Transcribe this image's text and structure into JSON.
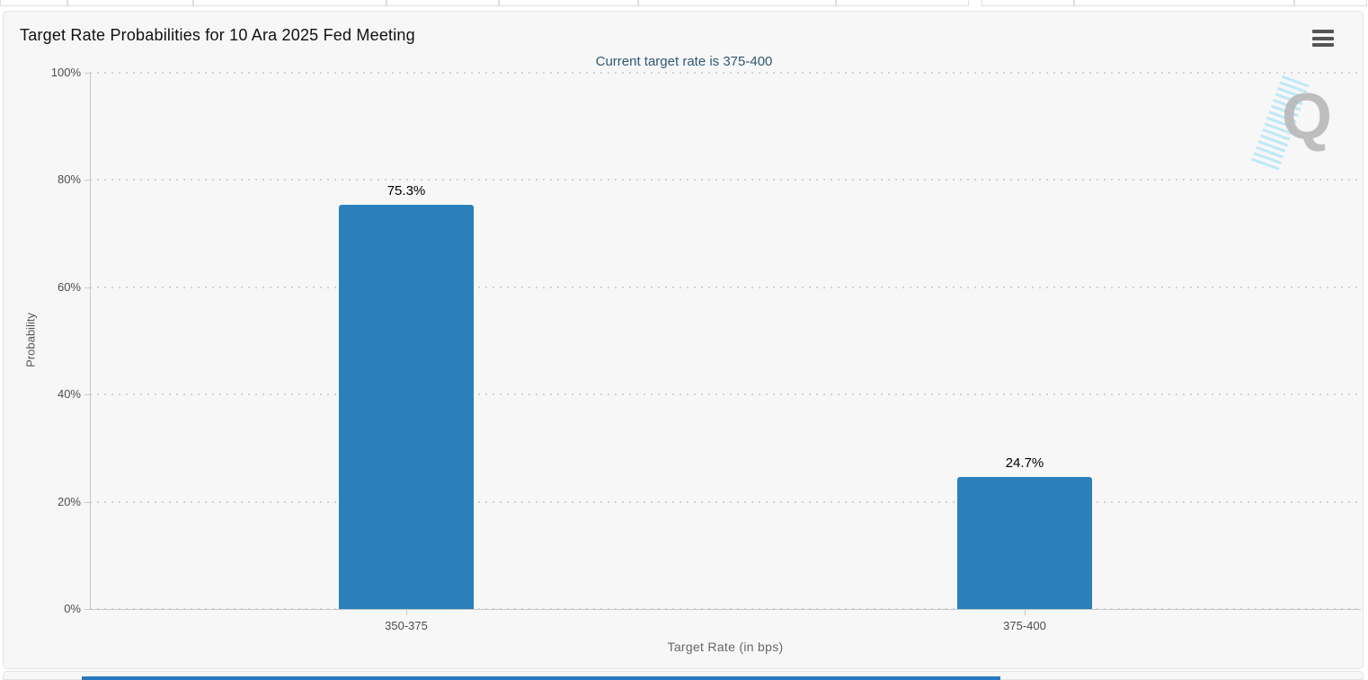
{
  "chart": {
    "menu_icon": "hamburger-menu-icon",
    "watermark_letter": "Q",
    "colors": {
      "bar": "#2b7fba",
      "subtitle_text": "#2f5873",
      "panel_background": "#f7f7f7",
      "bottom_accent_bar": "#2878c0"
    }
  },
  "chart_data": {
    "type": "bar",
    "title": "Target Rate Probabilities for 10 Ara 2025 Fed Meeting",
    "subtitle": "Current target rate is 375-400",
    "categories": [
      "350-375",
      "375-400"
    ],
    "values": [
      75.3,
      24.7
    ],
    "data_labels": [
      "75.3%",
      "24.7%"
    ],
    "xlabel": "Target Rate (in bps)",
    "ylabel": "Probability",
    "ylim": [
      0,
      100
    ],
    "yticks": [
      0,
      20,
      40,
      60,
      80,
      100
    ],
    "ytick_labels": [
      "0%",
      "20%",
      "40%",
      "60%",
      "80%",
      "100%"
    ],
    "grid": "horizontal dotted",
    "legend": "none",
    "bar_color": "#2b7fba"
  }
}
